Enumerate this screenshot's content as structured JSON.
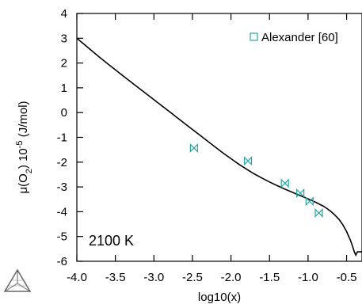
{
  "chart_data": {
    "type": "line",
    "title": "",
    "xlabel": "log10(x)",
    "ylabel": {
      "parts": [
        {
          "text": "μ(O",
          "shift": "normal"
        },
        {
          "text": "2",
          "shift": "sub"
        },
        {
          "text": ") 10",
          "shift": "normal"
        },
        {
          "text": "-5",
          "shift": "super"
        },
        {
          "text": " (J/mol)",
          "shift": "normal"
        }
      ]
    },
    "xlim": [
      -4.0,
      -0.3
    ],
    "ylim": [
      -6,
      4
    ],
    "xticks": [
      -4.0,
      -3.5,
      -3.0,
      -2.5,
      -2.0,
      -1.5,
      -1.0,
      -0.5
    ],
    "xtick_labels": [
      "-4.0",
      "-3.5",
      "-3.0",
      "-2.5",
      "-2.0",
      "-1.5",
      "-1.0",
      "-0.5"
    ],
    "yticks": [
      4,
      3,
      2,
      1,
      0,
      -1,
      -2,
      -3,
      -4,
      -5,
      -6
    ],
    "ytick_labels": [
      "4",
      "3",
      "2",
      "1",
      "0",
      "-1",
      "-2",
      "-3",
      "-4",
      "-5",
      "-6"
    ],
    "grid": false,
    "legend": "top-right",
    "series": [
      {
        "kind": "line",
        "color": "#000000",
        "x": [
          -4.0,
          -3.9,
          -3.8,
          -3.7,
          -3.6,
          -3.5,
          -3.4,
          -3.3,
          -3.2,
          -3.1,
          -3.0,
          -2.9,
          -2.8,
          -2.7,
          -2.6,
          -2.5,
          -2.4,
          -2.3,
          -2.2,
          -2.1,
          -2.0,
          -1.9,
          -1.8,
          -1.7,
          -1.6,
          -1.5,
          -1.4,
          -1.3,
          -1.2,
          -1.1,
          -1.0,
          -0.9,
          -0.8,
          -0.75,
          -0.7,
          -0.65,
          -0.6,
          -0.55,
          -0.5,
          -0.45,
          -0.42,
          -0.4,
          -0.38,
          -0.36,
          -0.3
        ],
        "y": [
          3.0,
          2.74,
          2.48,
          2.22,
          1.97,
          1.73,
          1.48,
          1.24,
          1.0,
          0.76,
          0.52,
          0.28,
          0.04,
          -0.2,
          -0.44,
          -0.68,
          -0.92,
          -1.16,
          -1.4,
          -1.64,
          -1.86,
          -2.08,
          -2.28,
          -2.47,
          -2.64,
          -2.8,
          -2.95,
          -3.09,
          -3.22,
          -3.35,
          -3.48,
          -3.62,
          -3.78,
          -3.88,
          -4.0,
          -4.14,
          -4.3,
          -4.52,
          -4.8,
          -5.15,
          -5.42,
          -5.62,
          -5.75,
          -5.62,
          -5.62
        ]
      },
      {
        "kind": "scatter",
        "name": "Alexander [60]",
        "color": "#2aa3a3",
        "x": [
          -2.48,
          -1.78,
          -1.3,
          -1.1,
          -0.98,
          -0.86
        ],
        "y": [
          -1.43,
          -1.95,
          -2.85,
          -3.25,
          -3.58,
          -4.05
        ]
      }
    ],
    "annotations": [
      {
        "text": "2100 K",
        "x": -3.9,
        "y": -5.3
      }
    ]
  },
  "logo": {
    "icon": "thermo-calc-triangle-icon",
    "color": "#666666"
  }
}
